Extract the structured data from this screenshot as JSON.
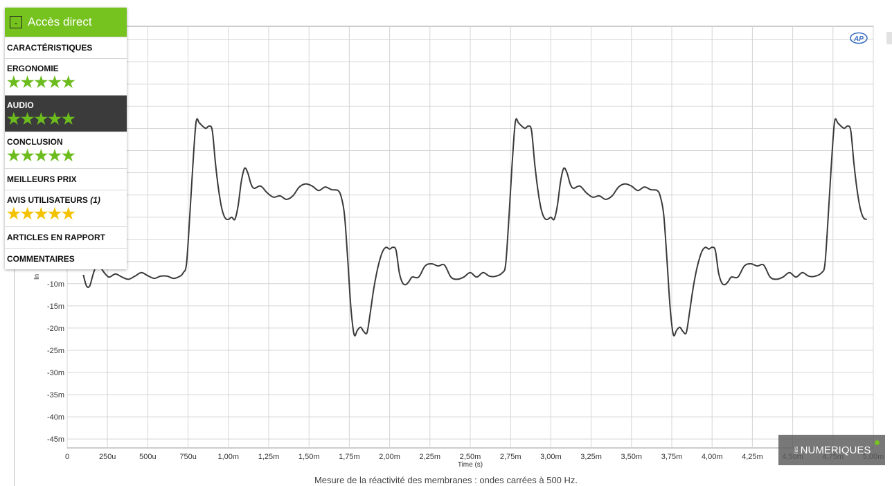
{
  "navigation": {
    "title": "Accès direct",
    "toggle_symbol": "-",
    "items": [
      {
        "label": "CARACTÉRISTIQUES"
      },
      {
        "label": "ERGONOMIE",
        "stars": "★★★★★",
        "rating": 5
      },
      {
        "label": "AUDIO",
        "stars": "★★★★★",
        "rating": 5,
        "active": true
      },
      {
        "label": "CONCLUSION",
        "stars": "★★★★★",
        "rating": 5
      },
      {
        "label": "MEILLEURS PRIX"
      },
      {
        "label": "AVIS UTILISATEURS",
        "count": "(1)",
        "stars": "★★★★★",
        "rating": 5
      },
      {
        "label": "ARTICLES EN RAPPORT"
      },
      {
        "label": "COMMENTAIRES"
      }
    ]
  },
  "watermark": {
    "les": "les",
    "text": "NUMERIQUES"
  },
  "logo": {
    "text": "AP"
  },
  "colors": {
    "accent_green": "#76c21e",
    "star_green": "#6cbc1e",
    "star_yellow": "#f3c200",
    "active_bg": "#3b3b3b",
    "line": "#3a3a3a"
  },
  "caption": "Mesure de la réactivité des membranes : ondes carrées à 500 Hz.",
  "chart_data": {
    "type": "line",
    "xlabel": "Time (s)",
    "ylabel": "In",
    "xlim": [
      0,
      0.005
    ],
    "ylim": [
      -0.047,
      0.048
    ],
    "grid": true,
    "x_tick_values": [
      0,
      0.00025,
      0.0005,
      0.00075,
      0.001,
      0.00125,
      0.0015,
      0.00175,
      0.002,
      0.00225,
      0.0025,
      0.00275,
      0.003,
      0.00325,
      0.0035,
      0.00375,
      0.004,
      0.00425,
      0.0045,
      0.00475,
      0.005
    ],
    "x_tick_labels": [
      "0",
      "250u",
      "500u",
      "750u",
      "1,00m",
      "1,25m",
      "1,50m",
      "1,75m",
      "2,00m",
      "2,25m",
      "2,50m",
      "2,75m",
      "3,00m",
      "3,25m",
      "3,50m",
      "3,75m",
      "4,00m",
      "4,25m",
      "4,50m",
      "4,75m",
      "5,00m"
    ],
    "y_tick_values": [
      -0.045,
      -0.04,
      -0.035,
      -0.03,
      -0.025,
      -0.02,
      -0.015,
      -0.01
    ],
    "y_tick_labels": [
      "-45m",
      "-40m",
      "-35m",
      "-30m",
      "-25m",
      "-20m",
      "-15m",
      "-10m"
    ],
    "series": [
      {
        "values": [
          [
            0.0001,
            -0.008
          ],
          [
            0.00012,
            -0.0105
          ],
          [
            0.00014,
            -0.0105
          ],
          [
            0.00016,
            -0.008
          ],
          [
            0.00018,
            -0.006
          ],
          [
            0.0002,
            -0.006
          ],
          [
            0.00023,
            -0.0075
          ],
          [
            0.00026,
            -0.0085
          ],
          [
            0.0003,
            -0.0078
          ],
          [
            0.00034,
            -0.0085
          ],
          [
            0.00038,
            -0.009
          ],
          [
            0.00042,
            -0.0083
          ],
          [
            0.00046,
            -0.0075
          ],
          [
            0.0005,
            -0.0082
          ],
          [
            0.00054,
            -0.0088
          ],
          [
            0.00058,
            -0.0083
          ],
          [
            0.00062,
            -0.0083
          ],
          [
            0.00066,
            -0.0088
          ],
          [
            0.0007,
            -0.0083
          ],
          [
            0.00072,
            -0.0075
          ],
          [
            0.00074,
            -0.0055
          ],
          [
            0.00076,
            0.005
          ],
          [
            0.00078,
            0.017
          ],
          [
            0.0008,
            0.0265
          ],
          [
            0.00082,
            0.0262
          ],
          [
            0.00084,
            0.0255
          ],
          [
            0.00086,
            0.025
          ],
          [
            0.00088,
            0.0255
          ],
          [
            0.0009,
            0.0245
          ],
          [
            0.00092,
            0.017
          ],
          [
            0.00094,
            0.011
          ],
          [
            0.00096,
            0.0068
          ],
          [
            0.00098,
            0.0048
          ],
          [
            0.001,
            0.0045
          ],
          [
            0.00102,
            0.005
          ],
          [
            0.00104,
            0.0045
          ],
          [
            0.00106,
            0.0075
          ],
          [
            0.00108,
            0.013
          ],
          [
            0.0011,
            0.016
          ],
          [
            0.00112,
            0.015
          ],
          [
            0.00114,
            0.0125
          ],
          [
            0.00116,
            0.0115
          ],
          [
            0.0012,
            0.012
          ],
          [
            0.00124,
            0.0105
          ],
          [
            0.00128,
            0.0095
          ],
          [
            0.00132,
            0.0098
          ],
          [
            0.00136,
            0.009
          ],
          [
            0.0014,
            0.0098
          ],
          [
            0.00144,
            0.0118
          ],
          [
            0.00148,
            0.0125
          ],
          [
            0.00152,
            0.012
          ],
          [
            0.00156,
            0.011
          ],
          [
            0.0016,
            0.0118
          ],
          [
            0.00164,
            0.0112
          ],
          [
            0.00168,
            0.011
          ],
          [
            0.0017,
            0.0095
          ],
          [
            0.00172,
            0.0055
          ],
          [
            0.00174,
            -0.0045
          ],
          [
            0.00176,
            -0.0155
          ],
          [
            0.00178,
            -0.0215
          ],
          [
            0.0018,
            -0.0205
          ],
          [
            0.00182,
            -0.0198
          ],
          [
            0.00184,
            -0.0208
          ],
          [
            0.00186,
            -0.021
          ],
          [
            0.00188,
            -0.0165
          ],
          [
            0.0019,
            -0.0115
          ],
          [
            0.00192,
            -0.0075
          ],
          [
            0.00194,
            -0.0045
          ],
          [
            0.00196,
            -0.0025
          ],
          [
            0.00198,
            -0.0018
          ],
          [
            0.002,
            -0.0022
          ],
          [
            0.00202,
            -0.0018
          ],
          [
            0.00204,
            -0.0025
          ],
          [
            0.00206,
            -0.0075
          ],
          [
            0.00208,
            -0.0098
          ],
          [
            0.0021,
            -0.0102
          ],
          [
            0.00212,
            -0.0095
          ],
          [
            0.00214,
            -0.0085
          ],
          [
            0.00218,
            -0.0085
          ],
          [
            0.00222,
            -0.006
          ],
          [
            0.00226,
            -0.0055
          ],
          [
            0.0023,
            -0.006
          ],
          [
            0.00234,
            -0.0058
          ],
          [
            0.00238,
            -0.0085
          ],
          [
            0.00242,
            -0.009
          ],
          [
            0.00246,
            -0.0085
          ],
          [
            0.0025,
            -0.0075
          ],
          [
            0.00254,
            -0.0085
          ],
          [
            0.00258,
            -0.0075
          ],
          [
            0.00262,
            -0.0083
          ],
          [
            0.00266,
            -0.0083
          ],
          [
            0.0027,
            -0.0075
          ],
          [
            0.00272,
            -0.0055
          ],
          [
            0.00274,
            0.005
          ],
          [
            0.00276,
            0.017
          ],
          [
            0.00278,
            0.0265
          ],
          [
            0.0028,
            0.0262
          ],
          [
            0.00282,
            0.0255
          ],
          [
            0.00284,
            0.025
          ],
          [
            0.00286,
            0.0255
          ],
          [
            0.00288,
            0.0245
          ],
          [
            0.0029,
            0.017
          ],
          [
            0.00292,
            0.011
          ],
          [
            0.00294,
            0.0068
          ],
          [
            0.00296,
            0.0048
          ],
          [
            0.00298,
            0.0045
          ],
          [
            0.003,
            0.005
          ],
          [
            0.00302,
            0.0045
          ],
          [
            0.00304,
            0.0075
          ],
          [
            0.00306,
            0.013
          ],
          [
            0.00308,
            0.016
          ],
          [
            0.0031,
            0.015
          ],
          [
            0.00312,
            0.0125
          ],
          [
            0.00314,
            0.0115
          ],
          [
            0.00318,
            0.012
          ],
          [
            0.00322,
            0.0105
          ],
          [
            0.00326,
            0.0095
          ],
          [
            0.0033,
            0.0098
          ],
          [
            0.00334,
            0.009
          ],
          [
            0.00338,
            0.0098
          ],
          [
            0.00342,
            0.0118
          ],
          [
            0.00346,
            0.0125
          ],
          [
            0.0035,
            0.012
          ],
          [
            0.00354,
            0.011
          ],
          [
            0.00358,
            0.0118
          ],
          [
            0.00362,
            0.0112
          ],
          [
            0.00366,
            0.011
          ],
          [
            0.00368,
            0.0095
          ],
          [
            0.0037,
            0.0055
          ],
          [
            0.00372,
            -0.0045
          ],
          [
            0.00374,
            -0.0155
          ],
          [
            0.00376,
            -0.0215
          ],
          [
            0.00378,
            -0.0205
          ],
          [
            0.0038,
            -0.0198
          ],
          [
            0.00382,
            -0.0208
          ],
          [
            0.00384,
            -0.021
          ],
          [
            0.00386,
            -0.0165
          ],
          [
            0.00388,
            -0.0115
          ],
          [
            0.0039,
            -0.0075
          ],
          [
            0.00392,
            -0.0045
          ],
          [
            0.00394,
            -0.0025
          ],
          [
            0.00396,
            -0.0018
          ],
          [
            0.00398,
            -0.0022
          ],
          [
            0.004,
            -0.0018
          ],
          [
            0.00402,
            -0.0025
          ],
          [
            0.00404,
            -0.0075
          ],
          [
            0.00406,
            -0.0098
          ],
          [
            0.00408,
            -0.0102
          ],
          [
            0.0041,
            -0.0095
          ],
          [
            0.00412,
            -0.0085
          ],
          [
            0.00416,
            -0.0085
          ],
          [
            0.0042,
            -0.006
          ],
          [
            0.00424,
            -0.0055
          ],
          [
            0.00428,
            -0.006
          ],
          [
            0.00432,
            -0.0058
          ],
          [
            0.00436,
            -0.0085
          ],
          [
            0.0044,
            -0.009
          ],
          [
            0.00444,
            -0.0085
          ],
          [
            0.00448,
            -0.0075
          ],
          [
            0.00452,
            -0.0085
          ],
          [
            0.00456,
            -0.0075
          ],
          [
            0.0046,
            -0.0083
          ],
          [
            0.00464,
            -0.0083
          ],
          [
            0.00468,
            -0.0075
          ],
          [
            0.0047,
            -0.0055
          ],
          [
            0.00472,
            0.005
          ],
          [
            0.00474,
            0.017
          ],
          [
            0.00476,
            0.0265
          ],
          [
            0.00478,
            0.0262
          ],
          [
            0.0048,
            0.0255
          ],
          [
            0.00482,
            0.025
          ],
          [
            0.00484,
            0.0255
          ],
          [
            0.00486,
            0.0245
          ],
          [
            0.00488,
            0.017
          ],
          [
            0.0049,
            0.011
          ],
          [
            0.00492,
            0.0068
          ],
          [
            0.00494,
            0.0048
          ],
          [
            0.00496,
            0.0045
          ]
        ]
      }
    ]
  }
}
